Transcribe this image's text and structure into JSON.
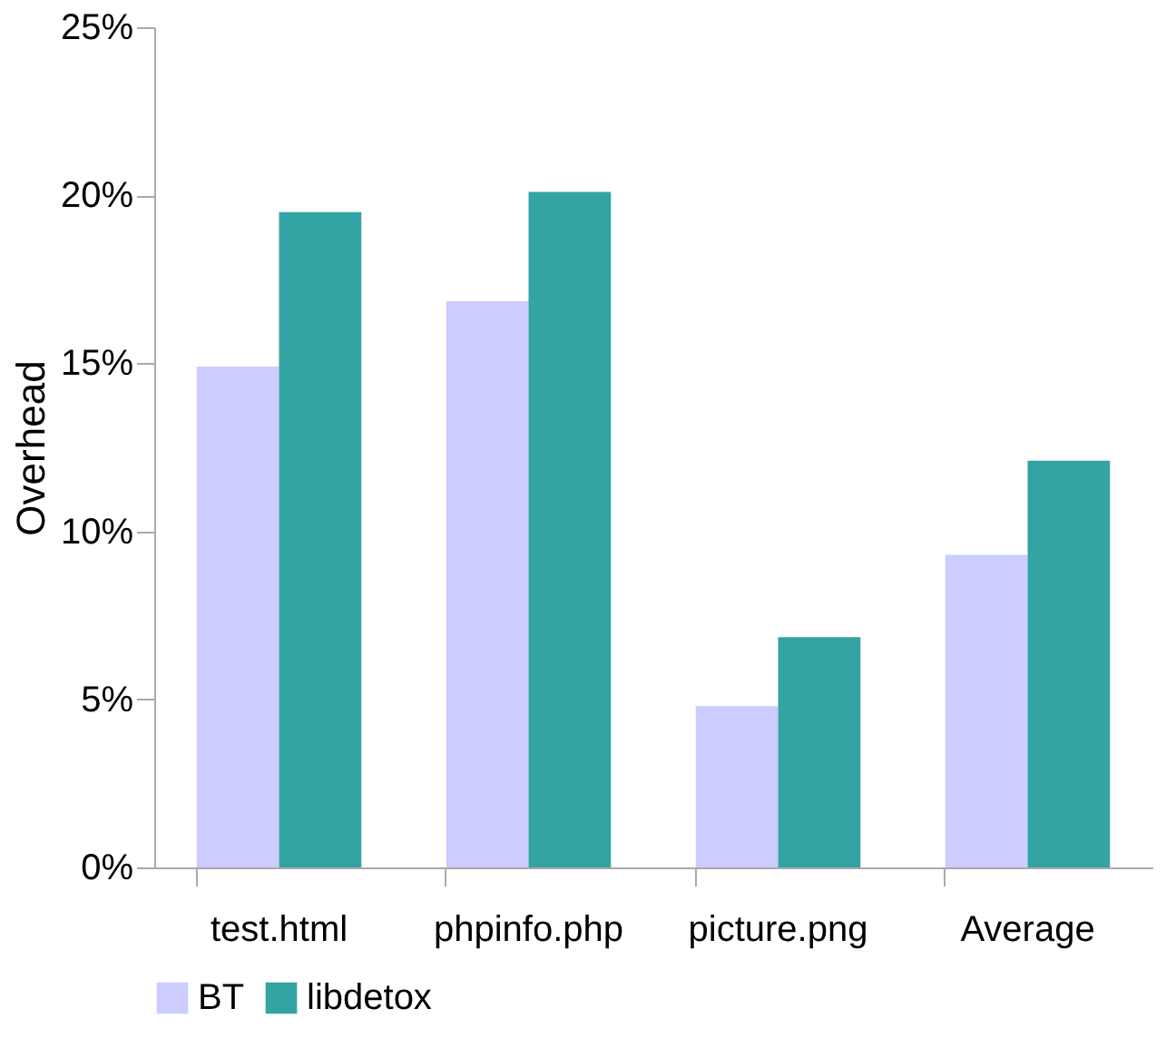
{
  "chart_data": {
    "type": "bar",
    "ylabel": "Overhead",
    "categories": [
      "test.html",
      "phpinfo.php",
      "picture.png",
      "Average"
    ],
    "series": [
      {
        "name": "BT",
        "color": "#ccccff",
        "values": [
          14.9,
          16.85,
          4.8,
          9.3
        ]
      },
      {
        "name": "libdetox",
        "color": "#33a3a3",
        "values": [
          19.5,
          20.1,
          6.85,
          12.1
        ]
      }
    ],
    "ylim": [
      0,
      25
    ],
    "yticks": [
      {
        "value": 0,
        "label": "0%"
      },
      {
        "value": 5,
        "label": "5%"
      },
      {
        "value": 10,
        "label": "10%"
      },
      {
        "value": 15,
        "label": "15%"
      },
      {
        "value": 20,
        "label": "20%"
      },
      {
        "value": 25,
        "label": "25%"
      }
    ],
    "grid": false,
    "legend": "bottom"
  }
}
